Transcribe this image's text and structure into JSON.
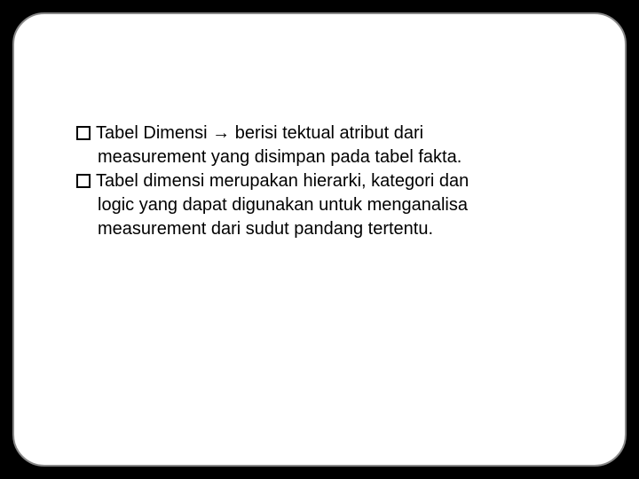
{
  "slide": {
    "background_color": "#000000",
    "frame": {
      "fill": "#ffffff",
      "border_color": "#888888",
      "border_width": 2,
      "border_radius": 36
    },
    "bullets": [
      {
        "lead": "Tabel Dimensi ",
        "arrow": "→",
        "tail_line1": " berisi tektual atribut dari",
        "cont": "measurement yang disimpan pada tabel fakta."
      },
      {
        "lead": "Tabel dimensi merupakan hierarki, kategori dan",
        "arrow": "",
        "tail_line1": "",
        "cont1": "logic yang dapat digunakan untuk menganalisa",
        "cont2": "measurement dari sudut pandang tertentu."
      }
    ],
    "text_color": "#000000",
    "font_size": 20,
    "bullet_marker": {
      "size": 16,
      "border_color": "#000000",
      "border_width": 2,
      "fill": "transparent"
    }
  }
}
